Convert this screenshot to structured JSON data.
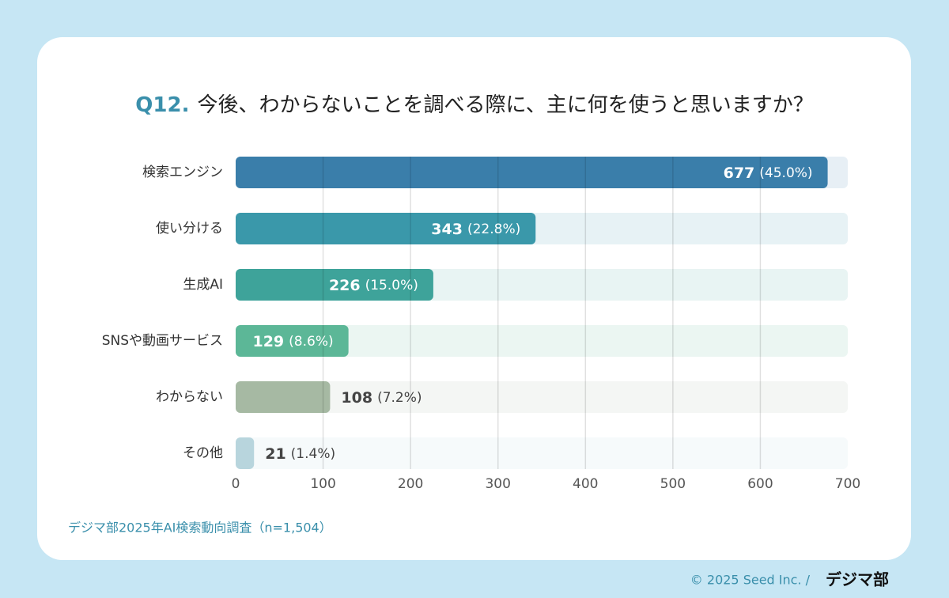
{
  "chart_data": {
    "type": "hbar",
    "title_prefix": "Q12.",
    "title": "今後、わからないことを調べる際に、主に何を使うと思いますか？",
    "categories": [
      "検索エンジン",
      "使い分ける",
      "生成AI",
      "SNSや動画サービス",
      "わからない",
      "その他"
    ],
    "values": [
      677,
      343,
      226,
      129,
      108,
      21
    ],
    "percent_labels": [
      "(45.0%)",
      "(22.8%)",
      "(15.0%)",
      "(8.6%)",
      "(7.2%)",
      "(1.4%)"
    ],
    "colors": [
      "#3a7eaa",
      "#3a98aa",
      "#3ea39a",
      "#5cb797",
      "#a6b9a3",
      "#b8d5dd"
    ],
    "xlim": [
      0,
      700
    ],
    "xticks": [
      0,
      100,
      200,
      300,
      400,
      500,
      600,
      700
    ],
    "grid": true,
    "source": "デジマ部2025年AI検索動向調査（n=1,504）"
  },
  "footer": {
    "copyright": "© 2025 Seed Inc. /",
    "logo": "デジマ部"
  }
}
